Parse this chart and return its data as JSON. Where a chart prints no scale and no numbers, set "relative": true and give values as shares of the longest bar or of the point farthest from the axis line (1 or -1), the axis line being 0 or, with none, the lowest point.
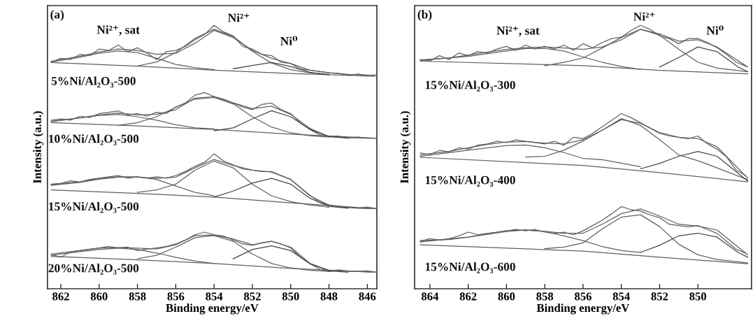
{
  "chart_data": [
    {
      "type": "line",
      "relative": true,
      "xlim": [
        862.7,
        845.5
      ],
      "xticks": [
        862,
        860,
        858,
        856,
        854,
        852,
        850,
        848,
        846
      ],
      "xlabel": "Binding energy/eV",
      "ylabel": "Intensity (a.u.)",
      "tick_labels": "x",
      "annotations": [
        "(a)",
        "Ni²⁺, sat",
        "Ni²⁺",
        "Ni⁰",
        "5%Ni/Al₂O₃-500",
        "10%Ni/Al₂O₃-500",
        "15%Ni/Al₂O₃-500",
        "20%Ni/Al₂O₃-500"
      ],
      "series": [
        {
          "color": "#606060",
          "x": [
            862.5,
            862,
            861.5,
            861,
            860.5,
            860,
            859.5,
            859,
            858.5,
            858,
            857.5,
            857,
            856.5,
            856,
            855.5,
            855,
            854.5,
            854,
            853.5,
            853,
            852.5,
            852,
            851.5,
            851,
            850.5,
            850,
            849.5,
            849,
            848.5,
            848,
            847.5,
            847,
            846.5,
            846,
            845.5
          ],
          "values": [
            0.86,
            0.875,
            0.87,
            0.89,
            0.885,
            0.91,
            0.905,
            0.925,
            0.9,
            0.915,
            0.895,
            0.87,
            0.9,
            0.905,
            0.92,
            0.945,
            0.965,
            1.0,
            0.975,
            0.96,
            0.92,
            0.91,
            0.89,
            0.885,
            0.86,
            0.855,
            0.835,
            0.83,
            0.825,
            0.82,
            0.818,
            0.81,
            0.815,
            0.81,
            0.812
          ]
        },
        {
          "color": "#606060",
          "x": [
            862.5,
            861,
            860,
            859,
            858,
            857,
            856,
            855,
            854,
            853,
            852,
            851,
            850,
            849,
            848,
            847,
            846,
            845.6
          ],
          "values": [
            0.864,
            0.883,
            0.899,
            0.91,
            0.905,
            0.89,
            0.894,
            0.932,
            0.981,
            0.954,
            0.905,
            0.875,
            0.855,
            0.83,
            0.82,
            0.814,
            0.811,
            0.81
          ]
        },
        {
          "color": "#606060",
          "x": [
            862.5,
            858,
            854,
            850,
            845.6
          ],
          "values": [
            0.859,
            0.845,
            0.83,
            0.817,
            0.807
          ]
        },
        {
          "color": "#606060",
          "x": [
            862.5,
            861,
            860,
            859,
            858,
            857,
            856,
            855,
            854
          ],
          "values": [
            0.861,
            0.879,
            0.894,
            0.903,
            0.897,
            0.875,
            0.852,
            0.839,
            0.832
          ]
        },
        {
          "color": "#606060",
          "x": [
            858,
            857,
            856,
            855,
            854,
            853,
            852,
            851,
            850,
            849,
            848
          ],
          "values": [
            0.846,
            0.861,
            0.897,
            0.95,
            0.985,
            0.958,
            0.901,
            0.857,
            0.832,
            0.82,
            0.814
          ]
        },
        {
          "color": "#454545",
          "x": [
            853,
            852,
            851,
            850,
            849,
            848
          ],
          "values": [
            0.835,
            0.848,
            0.859,
            0.844,
            0.822,
            0.812
          ]
        },
        {
          "color": "#606060",
          "x": [
            862.5,
            862,
            861.5,
            861,
            860.5,
            860,
            859.5,
            859,
            858.5,
            858,
            857.5,
            857,
            856.5,
            856,
            855.5,
            855,
            854.5,
            854,
            853.5,
            853,
            852.5,
            852,
            851.5,
            851,
            850.5,
            850,
            849.5,
            849,
            848.5,
            848,
            847.5,
            847,
            846.5,
            846,
            845.5
          ],
          "values": [
            0.64,
            0.645,
            0.64,
            0.655,
            0.65,
            0.665,
            0.67,
            0.675,
            0.66,
            0.665,
            0.655,
            0.67,
            0.665,
            0.69,
            0.705,
            0.735,
            0.745,
            0.73,
            0.72,
            0.705,
            0.69,
            0.68,
            0.7,
            0.705,
            0.68,
            0.665,
            0.63,
            0.605,
            0.585,
            0.578,
            0.58,
            0.572,
            0.576,
            0.572,
            0.572
          ]
        },
        {
          "color": "#606060",
          "x": [
            862.5,
            861,
            860,
            859,
            858,
            857,
            856,
            855,
            854,
            853,
            852,
            851,
            850,
            849,
            848,
            847,
            846,
            845.6
          ],
          "values": [
            0.636,
            0.649,
            0.66,
            0.667,
            0.66,
            0.662,
            0.68,
            0.724,
            0.729,
            0.706,
            0.684,
            0.693,
            0.662,
            0.609,
            0.578,
            0.574,
            0.572,
            0.572
          ]
        },
        {
          "color": "#606060",
          "x": [
            862.5,
            858,
            854,
            850,
            845.6
          ],
          "values": [
            0.631,
            0.618,
            0.605,
            0.587,
            0.572
          ]
        },
        {
          "color": "#606060",
          "x": [
            862.5,
            861,
            860,
            859,
            858,
            857,
            856,
            855,
            854
          ],
          "values": [
            0.634,
            0.649,
            0.658,
            0.662,
            0.653,
            0.64,
            0.623,
            0.611,
            0.607
          ]
        },
        {
          "color": "#606060",
          "x": [
            859,
            858,
            857,
            856,
            855,
            854,
            853,
            852,
            851,
            850,
            849,
            848
          ],
          "values": [
            0.62,
            0.631,
            0.653,
            0.689,
            0.72,
            0.726,
            0.702,
            0.653,
            0.614,
            0.592,
            0.581,
            0.576
          ]
        },
        {
          "color": "#454545",
          "x": [
            854,
            853,
            852,
            851,
            850,
            849,
            848,
            847
          ],
          "values": [
            0.6,
            0.611,
            0.645,
            0.676,
            0.653,
            0.605,
            0.578,
            0.572
          ]
        },
        {
          "color": "#606060",
          "x": [
            862.5,
            862,
            861.5,
            861,
            860.5,
            860,
            859.5,
            859,
            858.5,
            858,
            857.5,
            857,
            856.5,
            856,
            855.5,
            855,
            854.5,
            854,
            853.5,
            853,
            852.5,
            852,
            851.5,
            851,
            850.5,
            850,
            849.5,
            849,
            848.5,
            848,
            847.5,
            847,
            846.5,
            846,
            845.5
          ],
          "values": [
            0.395,
            0.4,
            0.41,
            0.405,
            0.415,
            0.42,
            0.425,
            0.43,
            0.42,
            0.425,
            0.42,
            0.425,
            0.42,
            0.43,
            0.445,
            0.465,
            0.48,
            0.512,
            0.485,
            0.47,
            0.455,
            0.45,
            0.445,
            0.445,
            0.43,
            0.415,
            0.385,
            0.355,
            0.33,
            0.318,
            0.31,
            0.31,
            0.306,
            0.31,
            0.304
          ]
        },
        {
          "color": "#606060",
          "x": [
            862.5,
            861,
            860,
            859,
            858,
            857,
            856,
            855,
            854,
            853,
            852,
            851,
            850,
            849,
            848,
            847,
            846,
            845.6
          ],
          "values": [
            0.397,
            0.406,
            0.419,
            0.425,
            0.424,
            0.419,
            0.424,
            0.459,
            0.491,
            0.468,
            0.45,
            0.443,
            0.415,
            0.353,
            0.318,
            0.308,
            0.304,
            0.304
          ]
        },
        {
          "color": "#606060",
          "x": [
            862.5,
            858,
            854,
            850,
            845.6
          ],
          "values": [
            0.375,
            0.362,
            0.348,
            0.326,
            0.304
          ]
        },
        {
          "color": "#606060",
          "x": [
            862.5,
            861,
            860,
            859,
            858,
            857,
            856,
            855,
            854
          ],
          "values": [
            0.393,
            0.404,
            0.416,
            0.424,
            0.425,
            0.415,
            0.39,
            0.366,
            0.353
          ]
        },
        {
          "color": "#606060",
          "x": [
            858,
            857,
            856,
            855,
            854,
            853,
            852,
            851,
            850,
            849,
            848
          ],
          "values": [
            0.366,
            0.375,
            0.397,
            0.45,
            0.485,
            0.459,
            0.397,
            0.353,
            0.331,
            0.318,
            0.31
          ]
        },
        {
          "color": "#454545",
          "x": [
            854,
            853,
            852,
            851,
            850,
            849,
            848,
            847
          ],
          "values": [
            0.348,
            0.371,
            0.401,
            0.419,
            0.397,
            0.344,
            0.313,
            0.306
          ]
        },
        {
          "color": "#606060",
          "x": [
            862.5,
            862,
            861.5,
            861,
            860.5,
            860,
            859.5,
            859,
            858.5,
            858,
            857.5,
            857,
            856.5,
            856,
            855.5,
            855,
            854.5,
            854,
            853.5,
            853,
            852.5,
            852,
            851.5,
            851,
            850.5,
            850,
            849.5,
            849,
            848.5,
            848,
            847.5,
            847,
            846.5,
            846,
            845.5
          ],
          "values": [
            0.13,
            0.12,
            0.14,
            0.145,
            0.15,
            0.155,
            0.16,
            0.155,
            0.158,
            0.145,
            0.15,
            0.155,
            0.16,
            0.17,
            0.185,
            0.205,
            0.215,
            0.205,
            0.2,
            0.185,
            0.17,
            0.165,
            0.175,
            0.18,
            0.17,
            0.155,
            0.12,
            0.095,
            0.075,
            0.065,
            0.072,
            0.067,
            0.066,
            0.068,
            0.063
          ]
        },
        {
          "color": "#606060",
          "x": [
            862.5,
            861,
            860,
            859,
            858,
            857,
            856,
            855,
            854,
            853,
            852,
            851,
            850,
            849,
            848,
            847,
            846,
            845.6
          ],
          "values": [
            0.132,
            0.145,
            0.154,
            0.156,
            0.154,
            0.151,
            0.167,
            0.202,
            0.204,
            0.189,
            0.167,
            0.18,
            0.158,
            0.096,
            0.07,
            0.067,
            0.064,
            0.063
          ]
        },
        {
          "color": "#606060",
          "x": [
            862.5,
            858,
            854,
            850,
            845.6
          ],
          "values": [
            0.123,
            0.11,
            0.096,
            0.077,
            0.063
          ]
        },
        {
          "color": "#606060",
          "x": [
            862.5,
            861,
            860,
            859,
            858,
            857,
            856,
            855,
            854
          ],
          "values": [
            0.127,
            0.141,
            0.149,
            0.154,
            0.149,
            0.136,
            0.119,
            0.105,
            0.096
          ]
        },
        {
          "color": "#606060",
          "x": [
            858,
            857,
            856,
            855,
            854,
            853,
            852,
            851,
            850,
            849,
            848
          ],
          "values": [
            0.114,
            0.127,
            0.158,
            0.194,
            0.202,
            0.18,
            0.132,
            0.096,
            0.079,
            0.07,
            0.066
          ]
        },
        {
          "color": "#454545",
          "x": [
            853,
            852,
            851,
            850,
            849,
            848,
            847
          ],
          "values": [
            0.114,
            0.149,
            0.163,
            0.145,
            0.096,
            0.068,
            0.063
          ]
        }
      ]
    },
    {
      "type": "line",
      "relative": true,
      "xlim": [
        864.8,
        847.2
      ],
      "xticks": [
        864,
        862,
        860,
        858,
        856,
        854,
        852,
        850
      ],
      "xlabel": "Binding energy/eV",
      "ylabel": "Intensity (a.u.)",
      "tick_labels": "x",
      "annotations": [
        "(b)",
        "Ni²⁺, sat",
        "Ni²⁺",
        "Ni⁰",
        "15%Ni/Al₂O₃-300",
        "15%Ni/Al₂O₃-400",
        "15%Ni/Al₂O₃-600"
      ],
      "series": [
        {
          "color": "#606060",
          "x": [
            864.5,
            864,
            863.5,
            863,
            862.5,
            862,
            861.5,
            861,
            860.5,
            860,
            859.5,
            859,
            858.5,
            858,
            857.5,
            857,
            856.5,
            856,
            855.5,
            855,
            854.5,
            854,
            853.5,
            853,
            852.5,
            852,
            851.5,
            851,
            850.5,
            850,
            849.5,
            849,
            848.5,
            848,
            847.5
          ],
          "values": [
            0.87,
            0.865,
            0.885,
            0.87,
            0.895,
            0.885,
            0.9,
            0.895,
            0.91,
            0.92,
            0.905,
            0.925,
            0.91,
            0.92,
            0.91,
            0.925,
            0.905,
            0.93,
            0.915,
            0.935,
            0.95,
            0.955,
            0.98,
            1.0,
            0.985,
            0.96,
            0.95,
            0.93,
            0.95,
            0.95,
            0.935,
            0.915,
            0.89,
            0.86,
            0.845
          ]
        },
        {
          "color": "#606060",
          "x": [
            864.5,
            863,
            862,
            861,
            860,
            859,
            858,
            857,
            856,
            855,
            854,
            853,
            852,
            851,
            850,
            849,
            847.4
          ],
          "values": [
            0.869,
            0.876,
            0.887,
            0.898,
            0.909,
            0.915,
            0.918,
            0.914,
            0.909,
            0.918,
            0.945,
            0.985,
            0.967,
            0.94,
            0.945,
            0.918,
            0.842
          ]
        },
        {
          "color": "#606060",
          "x": [
            864.5,
            856,
            852,
            847.4
          ],
          "values": [
            0.864,
            0.847,
            0.829,
            0.816
          ]
        },
        {
          "color": "#606060",
          "x": [
            864.5,
            862,
            860,
            859,
            858,
            857,
            856,
            855,
            854,
            853
          ],
          "values": [
            0.867,
            0.882,
            0.903,
            0.912,
            0.912,
            0.903,
            0.88,
            0.86,
            0.844,
            0.833
          ]
        },
        {
          "color": "#606060",
          "x": [
            858,
            857,
            856,
            855,
            854,
            853,
            852,
            851,
            850,
            849,
            847.4
          ],
          "values": [
            0.847,
            0.86,
            0.876,
            0.914,
            0.954,
            0.985,
            0.963,
            0.909,
            0.86,
            0.838,
            0.824
          ]
        },
        {
          "color": "#454545",
          "x": [
            852,
            851,
            850,
            849,
            847.9,
            847.4
          ],
          "values": [
            0.842,
            0.878,
            0.918,
            0.9,
            0.842,
            0.824
          ]
        },
        {
          "color": "#606060",
          "x": [
            864.5,
            864,
            863.5,
            863,
            862.5,
            862,
            861.5,
            861,
            860.5,
            860,
            859.5,
            859,
            858.5,
            858,
            857.5,
            857,
            856.5,
            856,
            855.5,
            855,
            854.5,
            854,
            853.5,
            853,
            852.5,
            852,
            851.5,
            851,
            850.5,
            850,
            849.5,
            849,
            848.5,
            848,
            847.5
          ],
          "values": [
            0.515,
            0.51,
            0.525,
            0.52,
            0.535,
            0.53,
            0.545,
            0.55,
            0.56,
            0.555,
            0.565,
            0.56,
            0.555,
            0.55,
            0.56,
            0.545,
            0.575,
            0.57,
            0.59,
            0.615,
            0.64,
            0.665,
            0.65,
            0.63,
            0.61,
            0.59,
            0.58,
            0.575,
            0.57,
            0.58,
            0.55,
            0.53,
            0.5,
            0.45,
            0.43
          ]
        },
        {
          "color": "#606060",
          "x": [
            864.5,
            863,
            862,
            861,
            860,
            859,
            858,
            857,
            856,
            855,
            854,
            853,
            852,
            851,
            850,
            849,
            847.4
          ],
          "values": [
            0.508,
            0.521,
            0.535,
            0.548,
            0.557,
            0.559,
            0.553,
            0.55,
            0.566,
            0.602,
            0.642,
            0.628,
            0.593,
            0.575,
            0.57,
            0.539,
            0.42
          ]
        },
        {
          "color": "#606060",
          "x": [
            864.5,
            856,
            852,
            847.4
          ],
          "values": [
            0.499,
            0.468,
            0.441,
            0.406
          ]
        },
        {
          "color": "#606060",
          "x": [
            864.5,
            862,
            860,
            859,
            858,
            857,
            856,
            855,
            854,
            853
          ],
          "values": [
            0.503,
            0.526,
            0.544,
            0.546,
            0.535,
            0.517,
            0.495,
            0.49,
            0.477,
            0.463
          ]
        },
        {
          "color": "#606060",
          "x": [
            859,
            858,
            857,
            856,
            855,
            854,
            853,
            852,
            851,
            850,
            849,
            847.4
          ],
          "values": [
            0.5,
            0.503,
            0.526,
            0.561,
            0.602,
            0.646,
            0.62,
            0.566,
            0.508,
            0.486,
            0.459,
            0.414
          ]
        },
        {
          "color": "#454545",
          "x": [
            853,
            852,
            851,
            850,
            849,
            847.4
          ],
          "values": [
            0.455,
            0.476,
            0.503,
            0.521,
            0.503,
            0.409
          ]
        },
        {
          "color": "#606060",
          "x": [
            864.5,
            864,
            863.5,
            863,
            862.5,
            862,
            861.5,
            861,
            860.5,
            860,
            859.5,
            859,
            858.5,
            858,
            857.5,
            857,
            856.5,
            856,
            855.5,
            855,
            854.5,
            854,
            853.5,
            853,
            852.5,
            852,
            851.5,
            851,
            850.5,
            850,
            849.5,
            849,
            848.5,
            848,
            847.5
          ],
          "values": [
            0.18,
            0.19,
            0.185,
            0.19,
            0.2,
            0.215,
            0.205,
            0.21,
            0.215,
            0.22,
            0.225,
            0.22,
            0.225,
            0.215,
            0.21,
            0.215,
            0.205,
            0.22,
            0.24,
            0.26,
            0.285,
            0.312,
            0.3,
            0.295,
            0.28,
            0.27,
            0.245,
            0.24,
            0.235,
            0.24,
            0.225,
            0.21,
            0.18,
            0.15,
            0.135
          ]
        },
        {
          "color": "#606060",
          "x": [
            864.5,
            863,
            862,
            861,
            860,
            859,
            858,
            857,
            856,
            855,
            854,
            853,
            852,
            851,
            850,
            849,
            847.4
          ],
          "values": [
            0.183,
            0.187,
            0.196,
            0.209,
            0.22,
            0.223,
            0.218,
            0.211,
            0.211,
            0.245,
            0.285,
            0.303,
            0.276,
            0.245,
            0.238,
            0.223,
            0.129
          ]
        },
        {
          "color": "#606060",
          "x": [
            864.5,
            856,
            852,
            847.4
          ],
          "values": [
            0.167,
            0.143,
            0.12,
            0.095
          ]
        },
        {
          "color": "#606060",
          "x": [
            864.5,
            862,
            860,
            859,
            858,
            857,
            856,
            855,
            854,
            853
          ],
          "values": [
            0.178,
            0.196,
            0.217,
            0.223,
            0.217,
            0.201,
            0.183,
            0.16,
            0.145,
            0.138
          ]
        },
        {
          "color": "#606060",
          "x": [
            858,
            857,
            856,
            855,
            854,
            853,
            852,
            851,
            850,
            849,
            847.4
          ],
          "values": [
            0.152,
            0.158,
            0.174,
            0.227,
            0.272,
            0.281,
            0.236,
            0.169,
            0.129,
            0.111,
            0.098
          ]
        },
        {
          "color": "#454545",
          "x": [
            853,
            852,
            851,
            850,
            849,
            847.9,
            847.4
          ],
          "values": [
            0.138,
            0.165,
            0.201,
            0.211,
            0.196,
            0.138,
            0.12
          ]
        }
      ]
    }
  ]
}
